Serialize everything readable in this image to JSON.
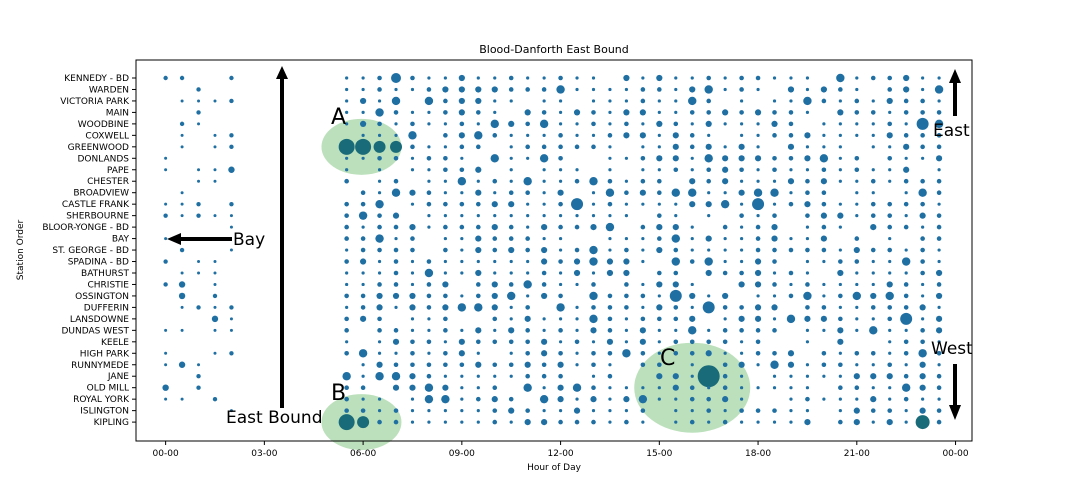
{
  "chart_data": {
    "type": "scatter",
    "title": "Blood-Danforth East Bound",
    "xlabel": "Hour of Day",
    "ylabel": "Station Order",
    "xlim": [
      -0.9,
      24.5
    ],
    "x_ticks": [
      {
        "hour": 0,
        "label": "00-00"
      },
      {
        "hour": 3,
        "label": "03-00"
      },
      {
        "hour": 6,
        "label": "06-00"
      },
      {
        "hour": 9,
        "label": "09-00"
      },
      {
        "hour": 12,
        "label": "12-00"
      },
      {
        "hour": 15,
        "label": "15-00"
      },
      {
        "hour": 18,
        "label": "18-00"
      },
      {
        "hour": 21,
        "label": "21-00"
      },
      {
        "hour": 24,
        "label": "00-00"
      }
    ],
    "stations": [
      "KENNEDY - BD",
      "WARDEN",
      "VICTORIA PARK",
      "MAIN",
      "WOODBINE",
      "COXWELL",
      "GREENWOOD",
      "DONLANDS",
      "PAPE",
      "CHESTER",
      "BROADVIEW",
      "CASTLE FRANK",
      "SHERBOURNE",
      "BLOOR-YONGE - BD",
      "BAY",
      "ST. GEORGE - BD",
      "SPADINA - BD",
      "BATHURST",
      "CHRISTIE",
      "OSSINGTON",
      "DUFFERIN",
      "LANSDOWNE",
      "DUNDAS WEST",
      "KEELE",
      "HIGH PARK",
      "RUNNYMEDE",
      "JANE",
      "OLD MILL",
      "ROYAL YORK",
      "ISLINGTON",
      "KIPLING"
    ],
    "point_color": "#1f6fa3",
    "highlight_color": "#a6d6a6",
    "grid": false,
    "legend": false,
    "early_hours": [
      0,
      0.5,
      1,
      1.5,
      2
    ],
    "day_hours": [
      5.5,
      6,
      6.5,
      7,
      7.5,
      8,
      8.5,
      9,
      9.5,
      10,
      10.5,
      11,
      11.5,
      12,
      12.5,
      13,
      13.5,
      14,
      14.5,
      15,
      15.5,
      16,
      16.5,
      17,
      17.5,
      18,
      18.5,
      19,
      19.5,
      20,
      20.5,
      21,
      21.5,
      22,
      22.5,
      23,
      23.5
    ],
    "notable_points": [
      {
        "station": "GREENWOOD",
        "hour": 5.5,
        "size": 8
      },
      {
        "station": "GREENWOOD",
        "hour": 6,
        "size": 8
      },
      {
        "station": "GREENWOOD",
        "hour": 6.5,
        "size": 6
      },
      {
        "station": "GREENWOOD",
        "hour": 7,
        "size": 6
      },
      {
        "station": "KIPLING",
        "hour": 5.5,
        "size": 8
      },
      {
        "station": "KIPLING",
        "hour": 6,
        "size": 6
      },
      {
        "station": "JANE",
        "hour": 16.5,
        "size": 11
      },
      {
        "station": "WOODBINE",
        "hour": 23,
        "size": 6
      },
      {
        "station": "KENNEDY - BD",
        "hour": 7,
        "size": 5
      },
      {
        "station": "CASTLE FRANK",
        "hour": 12.5,
        "size": 6
      },
      {
        "station": "CASTLE FRANK",
        "hour": 18,
        "size": 6
      },
      {
        "station": "OSSINGTON",
        "hour": 15.5,
        "size": 6
      },
      {
        "station": "DUFFERIN",
        "hour": 16.5,
        "size": 6
      },
      {
        "station": "LANSDOWNE",
        "hour": 22.5,
        "size": 6
      },
      {
        "station": "KIPLING",
        "hour": 23,
        "size": 7
      }
    ],
    "annotations": {
      "label_a": "A",
      "label_b": "B",
      "label_c": "C",
      "east": "East",
      "west": "West",
      "bay": "Bay",
      "east_bound": "East Bound"
    }
  }
}
